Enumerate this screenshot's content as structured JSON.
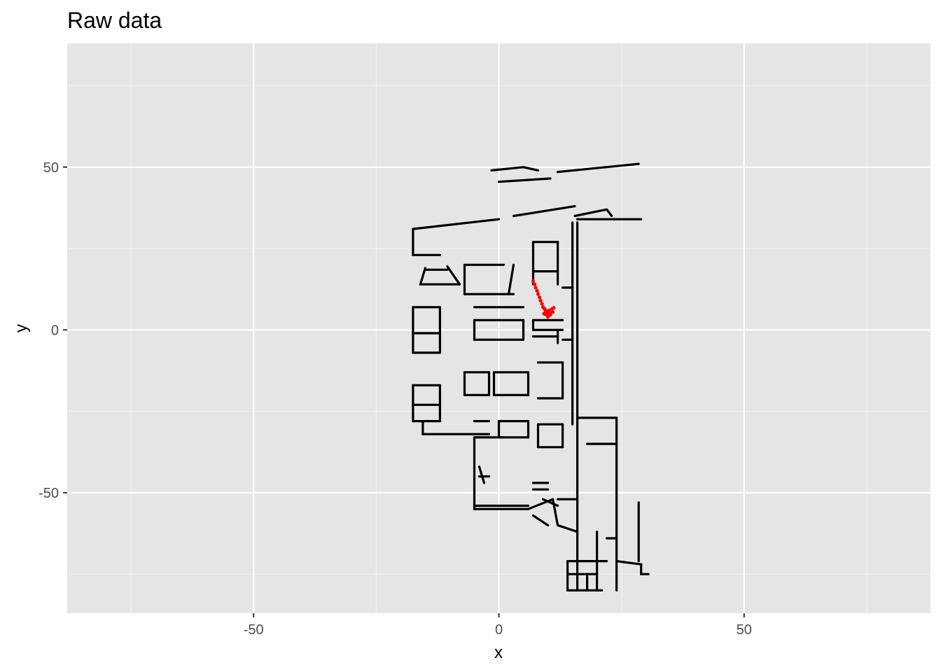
{
  "chart_data": {
    "type": "scatter",
    "title": "Raw data",
    "xlabel": "x",
    "ylabel": "y",
    "xlim": [
      -88,
      88
    ],
    "ylim": [
      -87,
      88
    ],
    "x_ticks": [
      -50,
      0,
      50
    ],
    "y_ticks": [
      -50,
      0,
      50
    ],
    "x_tick_labels": [
      "-50",
      "0",
      "50"
    ],
    "y_tick_labels": [
      "-50",
      "0",
      "50"
    ],
    "grid": true,
    "legend": "none",
    "colors": {
      "panel": "#e5e5e5",
      "grid_major": "#ffffff",
      "grid_minor": "#f2f2f2",
      "map": "#000000",
      "trajectory": "#ff0000"
    },
    "series": [
      {
        "color": "#000000",
        "segments": [
          [
            [
              -1.5,
              49
            ],
            [
              5,
              50
            ],
            [
              8,
              49
            ]
          ],
          [
            [
              12,
              48.5
            ],
            [
              28.5,
              51
            ]
          ],
          [
            [
              0,
              45.5
            ],
            [
              10.5,
              46.5
            ]
          ],
          [
            [
              -17.5,
              31
            ],
            [
              0,
              34
            ]
          ],
          [
            [
              3,
              35
            ],
            [
              15.5,
              38
            ]
          ],
          [
            [
              15.5,
              35
            ],
            [
              22,
              37
            ],
            [
              23,
              35
            ]
          ],
          [
            [
              16,
              34
            ],
            [
              29,
              34
            ]
          ],
          [
            [
              -17.5,
              31
            ],
            [
              -17.5,
              23
            ]
          ],
          [
            [
              -17.5,
              23
            ],
            [
              -12,
              23
            ]
          ],
          [
            [
              -15,
              19
            ],
            [
              -16,
              14
            ]
          ],
          [
            [
              -10.5,
              19.5
            ],
            [
              -8,
              14
            ]
          ],
          [
            [
              -15,
              18.5
            ],
            [
              -10.5,
              18.5
            ]
          ],
          [
            [
              -16,
              14
            ],
            [
              -8,
              14
            ]
          ],
          [
            [
              -7,
              20
            ],
            [
              1,
              20
            ]
          ],
          [
            [
              -7,
              20
            ],
            [
              -7,
              11
            ]
          ],
          [
            [
              -7,
              11
            ],
            [
              3,
              11
            ]
          ],
          [
            [
              3,
              20
            ],
            [
              2,
              11
            ]
          ],
          [
            [
              -17.5,
              7
            ],
            [
              -17.5,
              -7
            ]
          ],
          [
            [
              -17.5,
              7
            ],
            [
              -12,
              7
            ]
          ],
          [
            [
              -17.5,
              -1
            ],
            [
              -12,
              -1
            ]
          ],
          [
            [
              -17.5,
              -7
            ],
            [
              -12,
              -7
            ]
          ],
          [
            [
              -12,
              7
            ],
            [
              -12,
              -7
            ]
          ],
          [
            [
              -17.5,
              -17
            ],
            [
              -17.5,
              -28
            ]
          ],
          [
            [
              -17.5,
              -17
            ],
            [
              -12,
              -17
            ]
          ],
          [
            [
              -17.5,
              -23
            ],
            [
              -12,
              -23
            ]
          ],
          [
            [
              -17.5,
              -28
            ],
            [
              -12,
              -28
            ]
          ],
          [
            [
              -12,
              -17
            ],
            [
              -12,
              -28
            ]
          ],
          [
            [
              -15.5,
              -32
            ],
            [
              -2,
              -32
            ]
          ],
          [
            [
              -15.5,
              -28
            ],
            [
              -15.5,
              -32
            ]
          ],
          [
            [
              -5,
              7
            ],
            [
              5,
              7
            ]
          ],
          [
            [
              -5,
              3
            ],
            [
              5,
              3
            ]
          ],
          [
            [
              -5,
              -3
            ],
            [
              5,
              -3
            ]
          ],
          [
            [
              -5,
              3
            ],
            [
              -5,
              -3
            ]
          ],
          [
            [
              5,
              3
            ],
            [
              5,
              -3
            ]
          ],
          [
            [
              -7,
              -13
            ],
            [
              -2,
              -13
            ]
          ],
          [
            [
              -7,
              -20
            ],
            [
              -2,
              -20
            ]
          ],
          [
            [
              -7,
              -13
            ],
            [
              -7,
              -20
            ]
          ],
          [
            [
              -2,
              -13
            ],
            [
              -2,
              -20
            ]
          ],
          [
            [
              -1,
              -13
            ],
            [
              6,
              -13
            ]
          ],
          [
            [
              -1,
              -20
            ],
            [
              6,
              -20
            ]
          ],
          [
            [
              -1,
              -13
            ],
            [
              -1,
              -20
            ]
          ],
          [
            [
              6,
              -13
            ],
            [
              6,
              -20
            ]
          ],
          [
            [
              0,
              -28
            ],
            [
              6,
              -28
            ]
          ],
          [
            [
              0,
              -33
            ],
            [
              6,
              -33
            ]
          ],
          [
            [
              0,
              -28
            ],
            [
              0,
              -33
            ]
          ],
          [
            [
              6,
              -28
            ],
            [
              6,
              -33
            ]
          ],
          [
            [
              -5,
              -28
            ],
            [
              -2,
              -28
            ]
          ],
          [
            [
              -5,
              -33
            ],
            [
              -2,
              -33
            ]
          ],
          [
            [
              7,
              27
            ],
            [
              12,
              27
            ]
          ],
          [
            [
              7,
              27
            ],
            [
              7,
              14
            ]
          ],
          [
            [
              7,
              18
            ],
            [
              12,
              18
            ]
          ],
          [
            [
              12,
              27
            ],
            [
              12,
              14
            ]
          ],
          [
            [
              7,
              3
            ],
            [
              13,
              3
            ]
          ],
          [
            [
              7,
              3
            ],
            [
              7,
              0
            ]
          ],
          [
            [
              7,
              0
            ],
            [
              13,
              0
            ]
          ],
          [
            [
              7,
              -2
            ],
            [
              12,
              -2
            ]
          ],
          [
            [
              12,
              0
            ],
            [
              12,
              -4
            ]
          ],
          [
            [
              8,
              -10
            ],
            [
              13,
              -10
            ]
          ],
          [
            [
              13,
              -10
            ],
            [
              13,
              -21
            ]
          ],
          [
            [
              8,
              -21
            ],
            [
              13,
              -21
            ]
          ],
          [
            [
              8,
              -29
            ],
            [
              13,
              -29
            ]
          ],
          [
            [
              8,
              -29
            ],
            [
              8,
              -36
            ]
          ],
          [
            [
              8,
              -36
            ],
            [
              13,
              -36
            ]
          ],
          [
            [
              13,
              -29
            ],
            [
              13,
              -36
            ]
          ],
          [
            [
              15,
              33
            ],
            [
              15,
              -29
            ]
          ],
          [
            [
              16,
              33
            ],
            [
              16,
              -29
            ]
          ],
          [
            [
              -5,
              -33
            ],
            [
              -5,
              -55
            ]
          ],
          [
            [
              -5,
              -33
            ],
            [
              1,
              -33
            ]
          ],
          [
            [
              -5,
              -55
            ],
            [
              6,
              -55
            ]
          ],
          [
            [
              -5,
              -54
            ],
            [
              6,
              -54
            ]
          ],
          [
            [
              6,
              -55
            ],
            [
              11,
              -52
            ],
            [
              12,
              -60
            ],
            [
              16,
              -62
            ]
          ],
          [
            [
              16,
              -27
            ],
            [
              24,
              -27
            ]
          ],
          [
            [
              24,
              -27
            ],
            [
              24,
              -80
            ]
          ],
          [
            [
              16,
              -29
            ],
            [
              16,
              -62
            ]
          ],
          [
            [
              18,
              -35
            ],
            [
              24,
              -35
            ]
          ],
          [
            [
              16,
              -62
            ],
            [
              16,
              -80
            ]
          ],
          [
            [
              14,
              -71
            ],
            [
              22,
              -71
            ]
          ],
          [
            [
              14,
              -71
            ],
            [
              14,
              -80
            ]
          ],
          [
            [
              14,
              -75
            ],
            [
              20,
              -75
            ]
          ],
          [
            [
              14,
              -80
            ],
            [
              21,
              -80
            ]
          ],
          [
            [
              18,
              -75
            ],
            [
              18,
              -80
            ]
          ],
          [
            [
              20,
              -62
            ],
            [
              20,
              -80
            ]
          ],
          [
            [
              22,
              -64
            ],
            [
              24,
              -64
            ]
          ],
          [
            [
              28.5,
              -53
            ],
            [
              28.5,
              -71
            ]
          ],
          [
            [
              24,
              -71
            ],
            [
              29,
              -72
            ]
          ],
          [
            [
              29,
              -72
            ],
            [
              29,
              -75
            ]
          ],
          [
            [
              29,
              -75
            ],
            [
              30.5,
              -75
            ]
          ],
          [
            [
              15,
              13
            ],
            [
              13,
              13
            ]
          ],
          [
            [
              15,
              -3
            ],
            [
              13,
              -3
            ]
          ],
          [
            [
              12,
              -52
            ],
            [
              16,
              -52
            ]
          ],
          [
            [
              7,
              -57
            ],
            [
              10,
              -60
            ]
          ],
          [
            [
              9,
              -52
            ],
            [
              12,
              -54
            ]
          ],
          [
            [
              7,
              -47
            ],
            [
              10,
              -47
            ]
          ],
          [
            [
              7,
              -49
            ],
            [
              10,
              -49
            ]
          ],
          [
            [
              -4,
              -42
            ],
            [
              -3,
              -47
            ]
          ],
          [
            [
              -4,
              -45
            ],
            [
              -2,
              -45
            ]
          ]
        ]
      },
      {
        "color": "#ff0000",
        "points": [
          [
            7,
            15
          ],
          [
            7.3,
            14
          ],
          [
            7.5,
            13
          ],
          [
            7.8,
            12
          ],
          [
            8,
            11
          ],
          [
            8.3,
            10
          ],
          [
            8.5,
            9
          ],
          [
            8.8,
            8
          ],
          [
            9,
            7
          ],
          [
            9.3,
            6.5
          ],
          [
            9.5,
            6
          ],
          [
            9.2,
            5
          ],
          [
            9.6,
            4.8
          ],
          [
            10,
            5
          ],
          [
            10.5,
            5.2
          ],
          [
            11,
            5.5
          ],
          [
            10.5,
            4.6
          ],
          [
            10,
            4
          ],
          [
            9.5,
            4.8
          ],
          [
            9.8,
            5.5
          ],
          [
            10.2,
            6
          ],
          [
            10.8,
            6.4
          ],
          [
            11.2,
            6.8
          ]
        ]
      }
    ]
  }
}
